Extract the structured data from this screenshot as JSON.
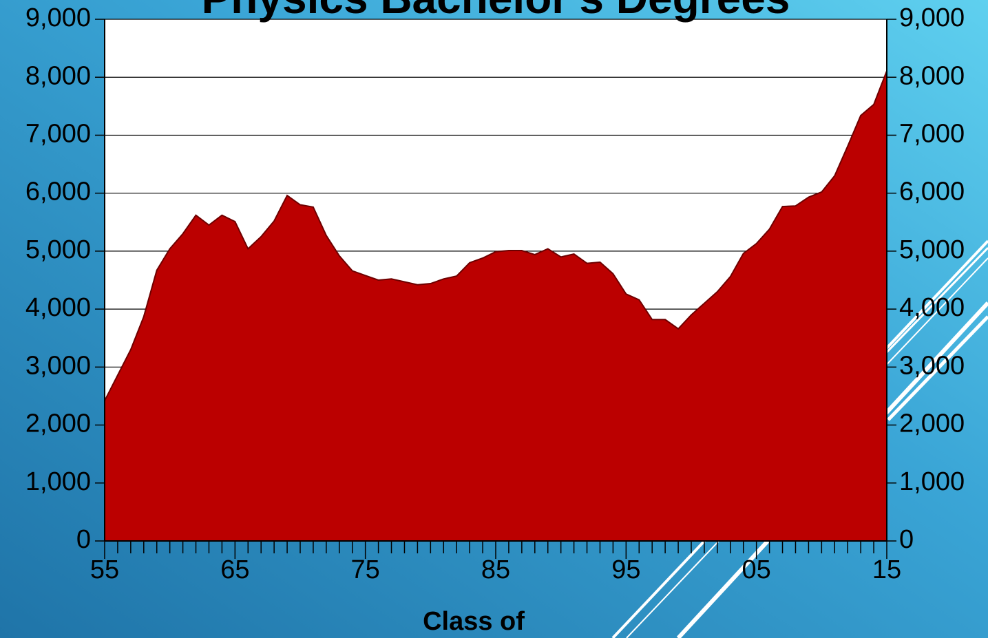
{
  "chart_data": {
    "type": "area",
    "title": "Physics Bachelor's Degrees",
    "x_label": "Class of",
    "categories": [
      "55",
      null,
      null,
      null,
      null,
      null,
      null,
      null,
      null,
      null,
      "65",
      null,
      null,
      null,
      null,
      null,
      null,
      null,
      null,
      null,
      "75",
      null,
      null,
      null,
      null,
      null,
      null,
      null,
      null,
      null,
      "85",
      null,
      null,
      null,
      null,
      null,
      null,
      null,
      null,
      null,
      "95",
      null,
      null,
      null,
      null,
      null,
      null,
      null,
      null,
      null,
      "05",
      null,
      null,
      null,
      null,
      null,
      null,
      null,
      null,
      null,
      "15"
    ],
    "values": [
      2420,
      2860,
      3300,
      3870,
      4670,
      5040,
      5300,
      5620,
      5450,
      5620,
      5510,
      5040,
      5250,
      5520,
      5960,
      5800,
      5760,
      5270,
      4920,
      4660,
      4580,
      4500,
      4520,
      4470,
      4420,
      4440,
      4520,
      4570,
      4800,
      4880,
      4990,
      5010,
      5010,
      4940,
      5040,
      4900,
      4950,
      4790,
      4810,
      4610,
      4260,
      4160,
      3820,
      3820,
      3660,
      3900,
      4100,
      4300,
      4560,
      4960,
      5130,
      5380,
      5770,
      5780,
      5930,
      6020,
      6300,
      6810,
      7340,
      7530,
      8110
    ],
    "color": "#bb0000",
    "ylim": [
      0,
      9000
    ],
    "yticks": [
      0,
      {
        "value": 1000,
        "label": "1,000"
      },
      {
        "value": 2000,
        "label": "2,000"
      },
      {
        "value": 3000,
        "label": "3,000"
      },
      {
        "value": 4000,
        "label": "4,000"
      },
      {
        "value": 5000,
        "label": "5,000"
      },
      {
        "value": 6000,
        "label": "6,000"
      },
      {
        "value": 7000,
        "label": "7,000"
      },
      {
        "value": 8000,
        "label": "8,000"
      },
      {
        "value": 9000,
        "label": "9,000"
      }
    ],
    "y2lim": [
      0,
      9000
    ],
    "y2ticks": [
      0,
      {
        "value": 1000,
        "label": "1,000"
      },
      {
        "value": 2000,
        "label": "2,000"
      },
      {
        "value": 3000,
        "label": "3,000"
      },
      {
        "value": 4000,
        "label": "4,000"
      },
      {
        "value": 5000,
        "label": "5,000"
      },
      {
        "value": 6000,
        "label": "6,000"
      },
      {
        "value": 7000,
        "label": "7,000"
      },
      {
        "value": 8000,
        "label": "8,000"
      },
      {
        "value": 9000,
        "label": "9,000"
      }
    ],
    "grid": true
  }
}
